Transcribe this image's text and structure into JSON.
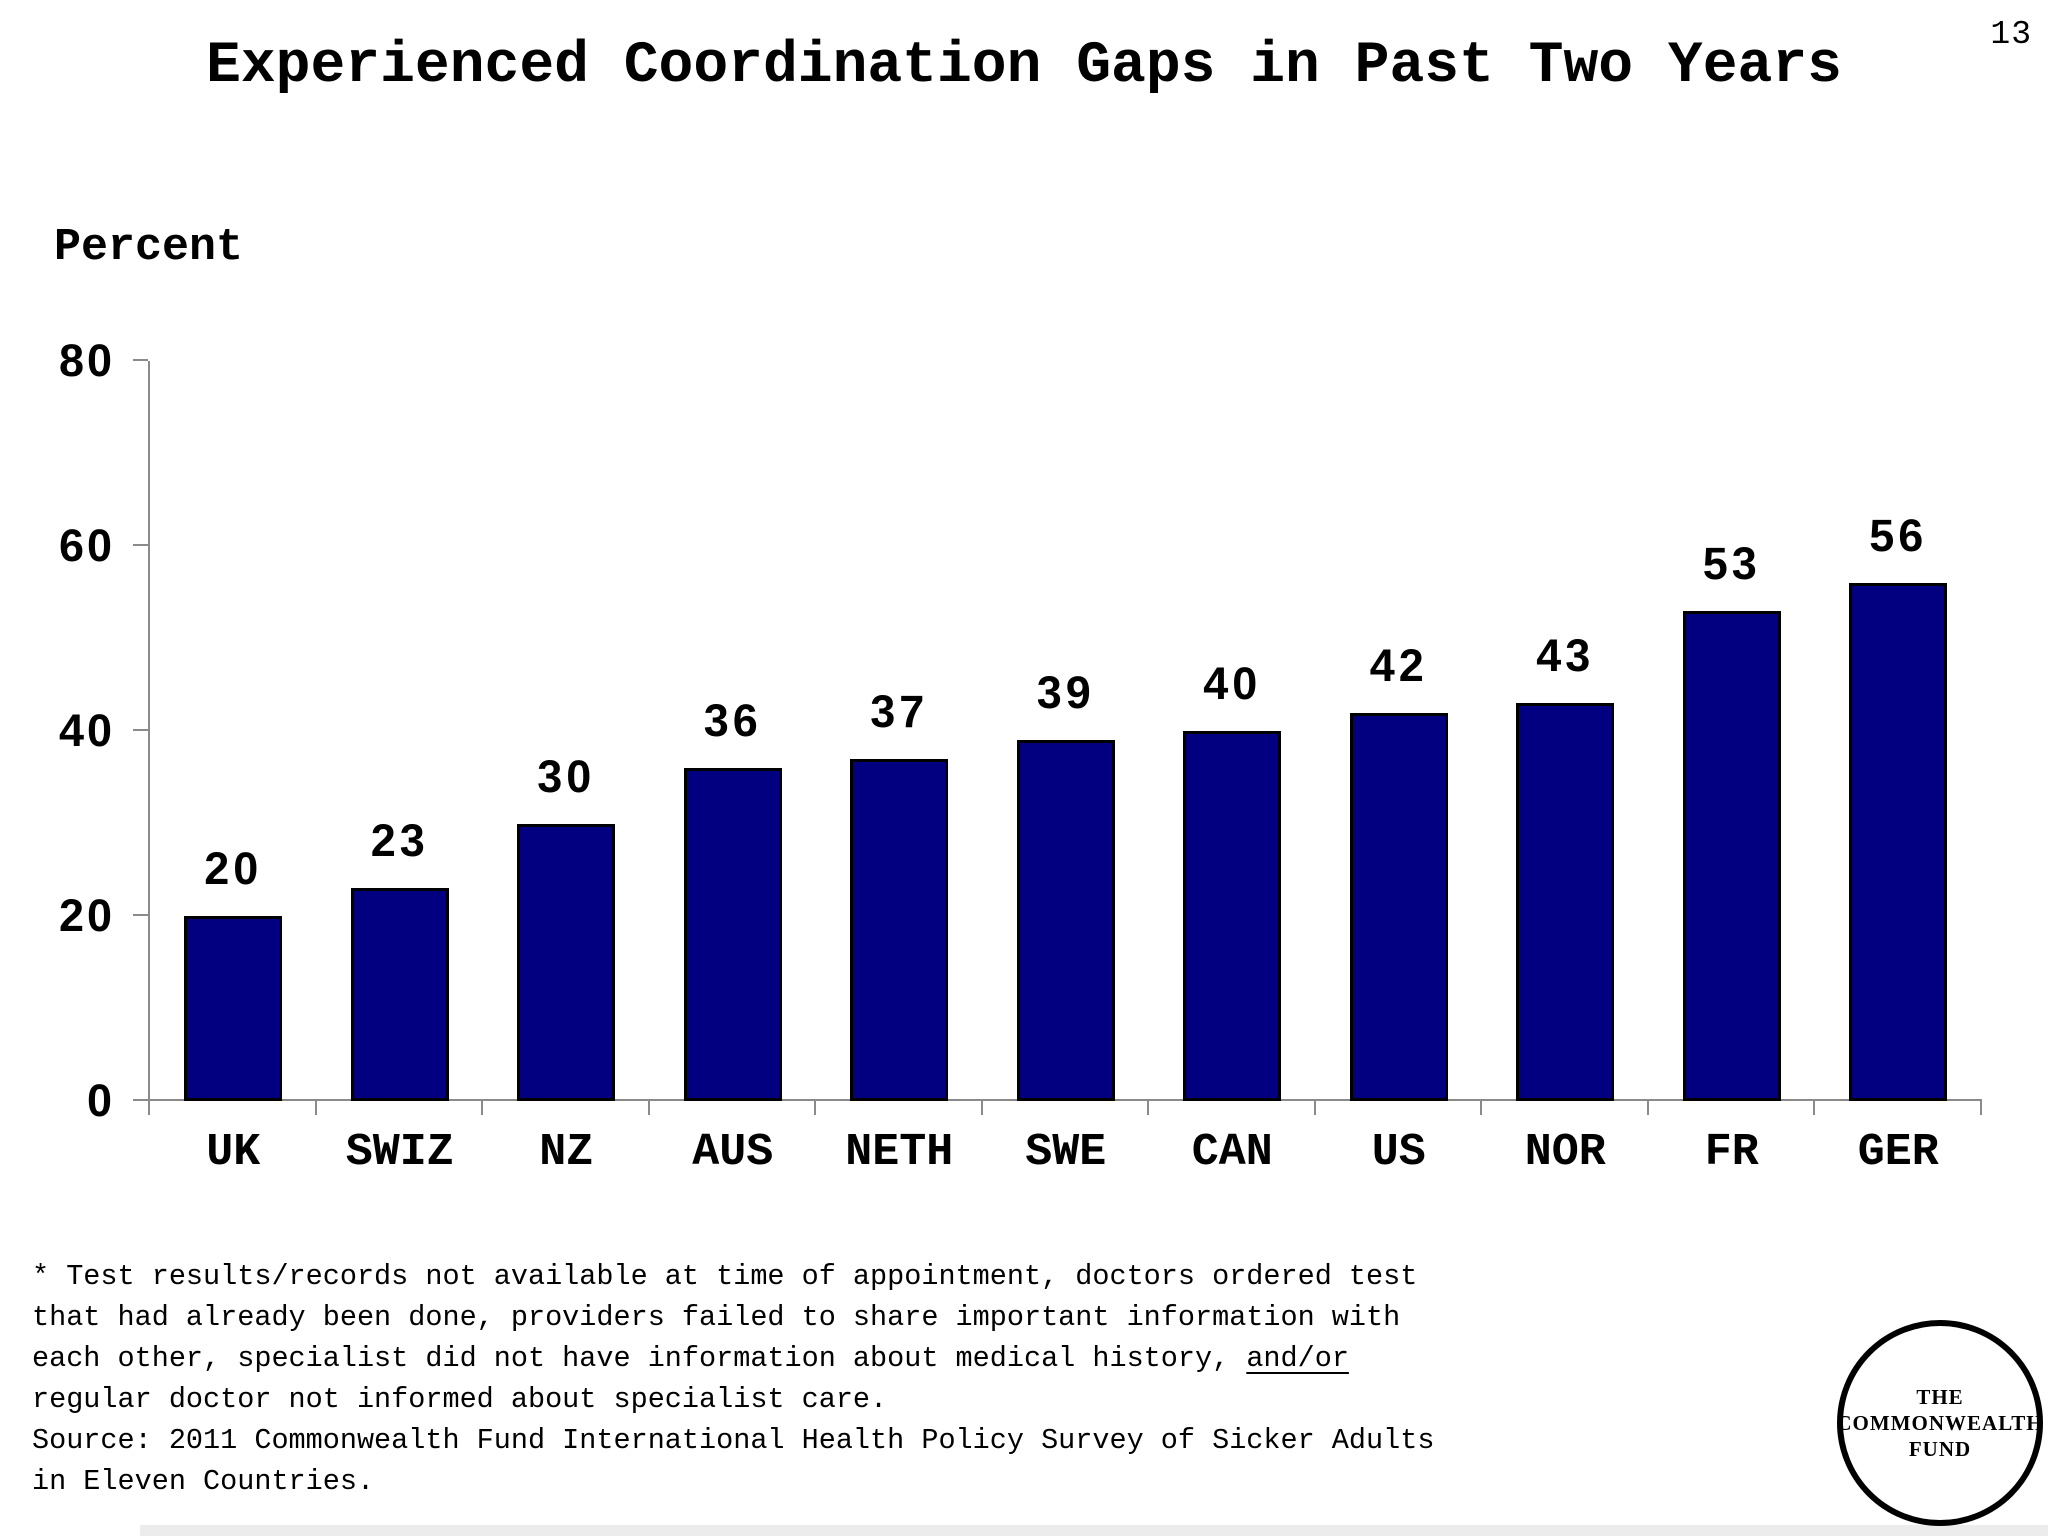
{
  "page_number": "13",
  "title": "Experienced Coordination Gaps in Past Two Years",
  "chart_data": {
    "type": "bar",
    "title": "Experienced Coordination Gaps in Past Two Years",
    "ylabel": "Percent",
    "xlabel": "",
    "categories": [
      "UK",
      "SWIZ",
      "NZ",
      "AUS",
      "NETH",
      "SWE",
      "CAN",
      "US",
      "NOR",
      "FR",
      "GER"
    ],
    "values": [
      20,
      23,
      30,
      36,
      37,
      39,
      40,
      42,
      43,
      53,
      56
    ],
    "ylim": [
      0,
      80
    ],
    "yticks": [
      0,
      20,
      40,
      60,
      80
    ],
    "grid": false,
    "legend_position": "none",
    "bar_color": "#020080",
    "bar_border_color": "#000000",
    "axis_color": "#8a8a8a",
    "label_color": "#000000"
  },
  "footnote": {
    "line1": "* Test results/records not available at time of appointment, doctors ordered test",
    "line2": "that had already been done, providers failed to share important information with",
    "line3_prefix": "each other, specialist did not have information about medical history, ",
    "line3_underlined": "and/or",
    "line4": "regular doctor not informed about specialist care.",
    "source_line1": "Source: 2011 Commonwealth Fund International Health Policy Survey of Sicker Adults",
    "source_line2": "in Eleven Countries."
  },
  "logo": {
    "line1": "THE",
    "line2": "COMMONWEALTH",
    "line3": "FUND"
  }
}
